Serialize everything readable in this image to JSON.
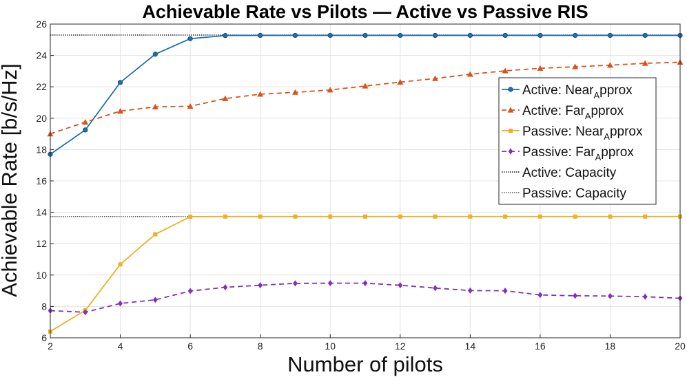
{
  "chart_data": {
    "type": "line",
    "title": "Achievable Rate vs Pilots — Active vs Passive RIS",
    "xlabel": "Number of pilots",
    "ylabel": "Achievable Rate [b/s/Hz]",
    "xlim": [
      2,
      20
    ],
    "ylim": [
      6,
      26
    ],
    "xticks": [
      2,
      4,
      6,
      8,
      10,
      12,
      14,
      16,
      18,
      20
    ],
    "yticks": [
      6,
      8,
      10,
      12,
      14,
      16,
      18,
      20,
      22,
      24,
      26
    ],
    "grid": true,
    "legend_position": "right",
    "x": [
      2,
      3,
      4,
      5,
      6,
      7,
      8,
      9,
      10,
      11,
      12,
      13,
      14,
      15,
      16,
      17,
      18,
      19,
      20
    ],
    "series": [
      {
        "name": "Active: Near_Approx",
        "legend": {
          "pre": "Active: Near",
          "sub": "A",
          "post": "pprox"
        },
        "color": "#1f6fb3",
        "style": "solid",
        "marker": "circle",
        "values": [
          17.7,
          19.25,
          22.28,
          24.08,
          25.07,
          25.27,
          25.28,
          25.28,
          25.28,
          25.28,
          25.28,
          25.28,
          25.28,
          25.28,
          25.28,
          25.28,
          25.28,
          25.28,
          25.28
        ]
      },
      {
        "name": "Active: Far_Approx",
        "legend": {
          "pre": "Active: Far",
          "sub": "A",
          "post": "pprox"
        },
        "color": "#d95319",
        "style": "dashed",
        "marker": "triangle",
        "values": [
          19.0,
          19.75,
          20.45,
          20.72,
          20.76,
          21.25,
          21.53,
          21.65,
          21.8,
          22.05,
          22.3,
          22.53,
          22.8,
          23.02,
          23.18,
          23.28,
          23.38,
          23.5,
          23.57
        ]
      },
      {
        "name": "Passive: Near_Approx",
        "legend": {
          "pre": "Passive: Near",
          "sub": "A",
          "post": "pprox"
        },
        "color": "#edb120",
        "style": "solid",
        "marker": "square",
        "values": [
          6.4,
          7.75,
          10.68,
          12.6,
          13.72,
          13.73,
          13.73,
          13.73,
          13.73,
          13.73,
          13.73,
          13.73,
          13.73,
          13.73,
          13.73,
          13.73,
          13.73,
          13.73,
          13.73
        ]
      },
      {
        "name": "Passive: Far_Approx",
        "legend": {
          "pre": "Passive: Far",
          "sub": "A",
          "post": "pprox"
        },
        "color": "#7e2fbf",
        "style": "dashed",
        "marker": "diamond",
        "values": [
          7.73,
          7.63,
          8.19,
          8.42,
          8.98,
          9.22,
          9.35,
          9.47,
          9.48,
          9.48,
          9.35,
          9.17,
          9.01,
          9.0,
          8.73,
          8.68,
          8.66,
          8.62,
          8.52
        ]
      },
      {
        "name": "Active: Capacity",
        "legend": {
          "pre": "Active: Capacity",
          "sub": "",
          "post": ""
        },
        "color": "#111111",
        "style": "dotted",
        "marker": "none",
        "values": [
          25.3,
          25.3,
          25.3,
          25.3,
          25.3,
          25.3,
          25.3,
          25.3,
          25.3,
          25.3,
          25.3,
          25.3,
          25.3,
          25.3,
          25.3,
          25.3,
          25.3,
          25.3,
          25.3
        ]
      },
      {
        "name": "Passive: Capacity",
        "legend": {
          "pre": "Passive: Capacity",
          "sub": "",
          "post": ""
        },
        "color": "#555555",
        "style": "dotted",
        "marker": "none",
        "values": [
          13.73,
          13.73,
          13.73,
          13.73,
          13.73,
          13.73,
          13.73,
          13.73,
          13.73,
          13.73,
          13.73,
          13.73,
          13.73,
          13.73,
          13.73,
          13.73,
          13.73,
          13.73,
          13.73
        ]
      }
    ]
  }
}
